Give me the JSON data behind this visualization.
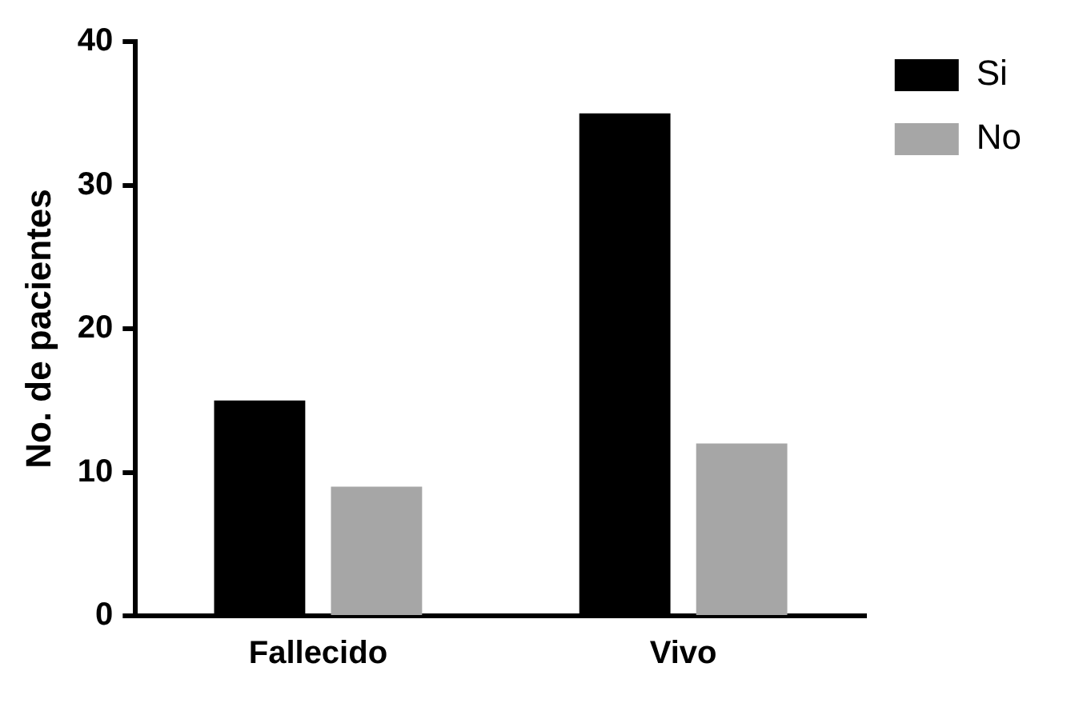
{
  "chart_data": {
    "type": "bar",
    "ylabel": "No. de pacientes",
    "categories": [
      "Fallecido",
      "Vivo"
    ],
    "series": [
      {
        "name": "Si",
        "color": "#000000",
        "values": [
          15,
          35
        ]
      },
      {
        "name": "No",
        "color": "#a6a6a6",
        "values": [
          9,
          12
        ]
      }
    ],
    "ylim": [
      0,
      40
    ],
    "yticks": [
      0,
      10,
      20,
      30,
      40
    ],
    "grid": false,
    "legend": "top right"
  }
}
